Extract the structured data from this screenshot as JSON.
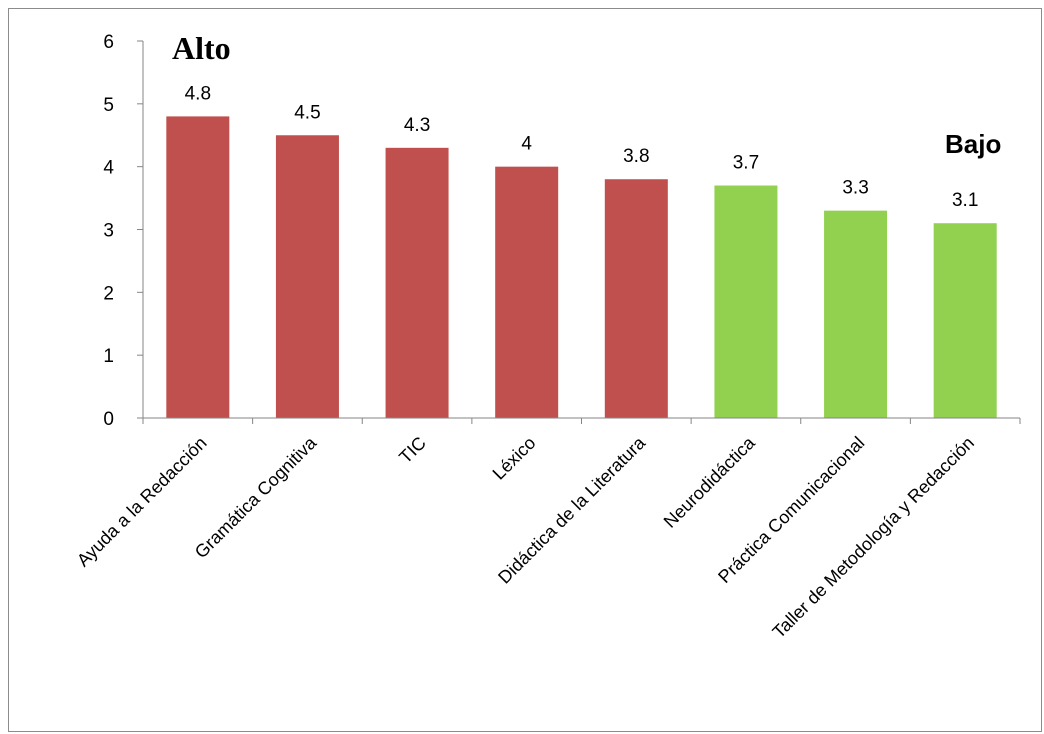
{
  "chart_data": {
    "type": "bar",
    "categories": [
      "Ayuda a  la Redacción",
      "Gramática Cognitiva",
      "TIC",
      "Léxico",
      "Didáctica de la Literatura",
      "Neurodidáctica",
      "Práctica Comunicacional",
      "Taller de Metodología y Redacción"
    ],
    "values": [
      4.8,
      4.5,
      4.3,
      4,
      3.8,
      3.7,
      3.3,
      3.1
    ],
    "value_labels": [
      "4.8",
      "4.5",
      "4.3",
      "4",
      "3.8",
      "3.7",
      "3.3",
      "3.1"
    ],
    "bar_colors": [
      "#c0504d",
      "#c0504d",
      "#c0504d",
      "#c0504d",
      "#c0504d",
      "#92d050",
      "#92d050",
      "#92d050"
    ],
    "y_ticks": [
      "0",
      "1",
      "2",
      "3",
      "4",
      "5",
      "6"
    ],
    "ylim": [
      0,
      6
    ],
    "grid": false,
    "legend": "none",
    "annotations": {
      "high": "Alto",
      "low": "Bajo"
    }
  }
}
